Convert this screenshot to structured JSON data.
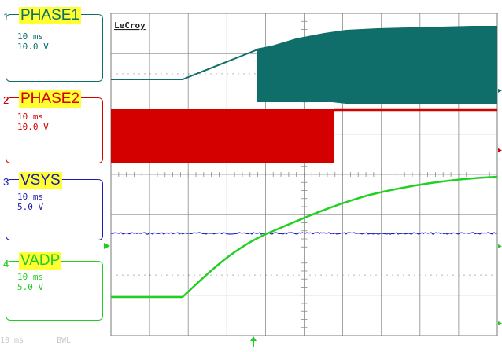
{
  "scope_brand": "LeCroy",
  "channels": [
    {
      "num": "1",
      "name": "PHASE1",
      "timebase": "10 ms",
      "volts": "10.0 V",
      "color": "#0f6e6a"
    },
    {
      "num": "2",
      "name": "PHASE2",
      "timebase": "10 ms",
      "volts": "10.0 V",
      "color": "#d40000"
    },
    {
      "num": "3",
      "name": "VSYS",
      "timebase": "10 ms",
      "volts": "5.0 V",
      "color": "#1a1ab4"
    },
    {
      "num": "4",
      "name": "VADP",
      "timebase": "10 ms",
      "volts": "5.0 V",
      "color": "#22cc22"
    }
  ],
  "status": {
    "timebase": "10 ms",
    "bwl": "BWL"
  },
  "colors": {
    "grid": "#8a8a8a",
    "background": "#ffffff",
    "highlight": "#ffff33"
  }
}
